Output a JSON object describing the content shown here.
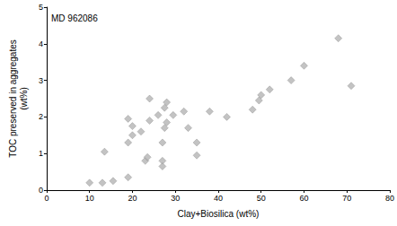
{
  "chart_data": {
    "type": "scatter",
    "annotation": "MD 962086",
    "x_label": "Clay+Biosilica (wt%)",
    "y_label": "TOC preserved in aggregates\n(wt%)",
    "x": [
      10,
      13,
      13.5,
      15.5,
      19,
      19,
      19,
      20,
      20,
      22,
      23,
      23.5,
      24,
      24,
      26,
      27,
      27,
      27,
      27.5,
      27.5,
      28,
      28,
      29.5,
      32,
      33,
      35,
      35,
      38,
      42,
      48,
      49.5,
      50,
      52,
      57,
      60,
      68,
      71
    ],
    "values": [
      0.2,
      0.2,
      1.05,
      0.25,
      0.35,
      1.3,
      1.95,
      1.75,
      1.5,
      1.6,
      0.8,
      0.9,
      2.5,
      1.9,
      2.05,
      0.8,
      0.65,
      1.3,
      1.7,
      2.25,
      1.85,
      2.4,
      2.05,
      2.15,
      1.7,
      1.3,
      0.95,
      2.15,
      2.0,
      2.2,
      2.45,
      2.6,
      2.75,
      3.0,
      3.4,
      4.15,
      2.85
    ],
    "color": "#b4b4b4",
    "marker": "diamond",
    "xlim": [
      0,
      80
    ],
    "xticks": [
      0,
      10,
      20,
      30,
      40,
      50,
      60,
      70,
      80
    ],
    "ylim": [
      0,
      5
    ],
    "yticks": [
      0,
      1,
      2,
      3,
      4,
      5
    ],
    "grid": false
  }
}
